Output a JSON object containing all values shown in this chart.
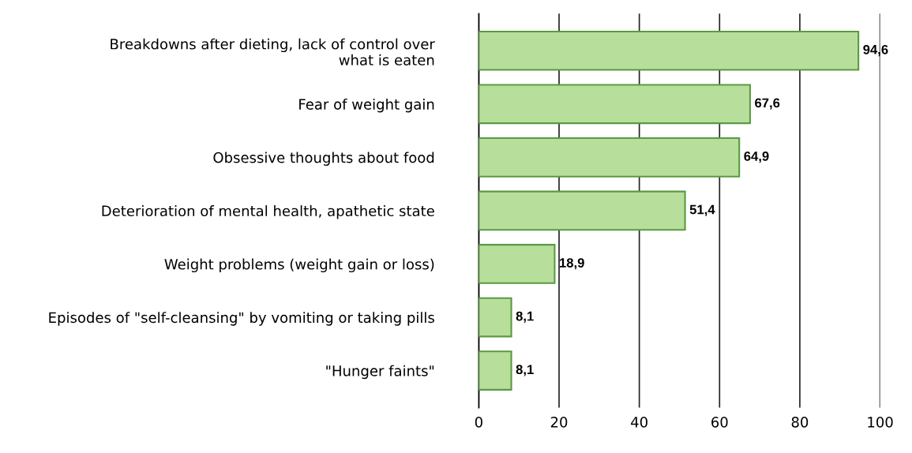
{
  "chart_data": {
    "type": "bar",
    "orientation": "horizontal",
    "categories": [
      "Breakdowns after dieting, lack of control over\nwhat is eaten",
      "Fear of weight gain",
      "Obsessive thoughts about food",
      "Deterioration of mental health, apathetic state",
      "Weight problems (weight gain or loss)",
      "Episodes of \"self-cleansing\" by vomiting or taking pills",
      "\"Hunger faints\""
    ],
    "values": [
      94.6,
      67.6,
      64.9,
      51.4,
      18.9,
      8.1,
      8.1
    ],
    "value_labels": [
      "94,6",
      "67,6",
      "64,9",
      "51,4",
      "18,9",
      "8,1",
      "8,1"
    ],
    "color": "#b8de9c",
    "xlim": [
      0,
      100
    ],
    "xticks": [
      0,
      20,
      40,
      60,
      80,
      100
    ],
    "grid": "x",
    "legend": false
  }
}
